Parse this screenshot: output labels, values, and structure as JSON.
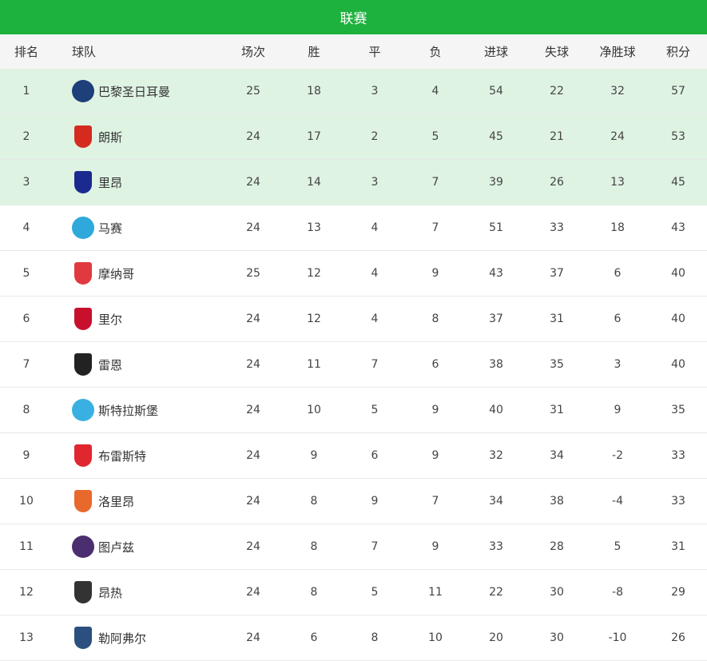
{
  "title": "联赛",
  "columns": [
    "排名",
    "球队",
    "场次",
    "胜",
    "平",
    "负",
    "进球",
    "失球",
    "净胜球",
    "积分"
  ],
  "highlight_color": "#dff3e3",
  "accent": "#1db13d",
  "rows": [
    {
      "rank": "1",
      "team": "巴黎圣日耳曼",
      "played": "25",
      "won": "18",
      "drawn": "3",
      "lost": "4",
      "gf": "54",
      "ga": "22",
      "gd": "32",
      "pts": "57",
      "logo": "psg-crest-icon",
      "logo_color": "#1d3f7a",
      "shape": "circle"
    },
    {
      "rank": "2",
      "team": "朗斯",
      "played": "24",
      "won": "17",
      "drawn": "2",
      "lost": "5",
      "gf": "45",
      "ga": "21",
      "gd": "24",
      "pts": "53",
      "logo": "lens-crest-icon",
      "logo_color": "#d52b1e",
      "shape": "shield"
    },
    {
      "rank": "3",
      "team": "里昂",
      "played": "24",
      "won": "14",
      "drawn": "3",
      "lost": "7",
      "gf": "39",
      "ga": "26",
      "gd": "13",
      "pts": "45",
      "logo": "lyon-crest-icon",
      "logo_color": "#1a2a8f",
      "shape": "shield"
    },
    {
      "rank": "4",
      "team": "马赛",
      "played": "24",
      "won": "13",
      "drawn": "4",
      "lost": "7",
      "gf": "51",
      "ga": "33",
      "gd": "18",
      "pts": "43",
      "logo": "marseille-crest-icon",
      "logo_color": "#2fa8dc",
      "shape": "circle"
    },
    {
      "rank": "5",
      "team": "摩纳哥",
      "played": "25",
      "won": "12",
      "drawn": "4",
      "lost": "9",
      "gf": "43",
      "ga": "37",
      "gd": "6",
      "pts": "40",
      "logo": "monaco-crest-icon",
      "logo_color": "#e03a3e",
      "shape": "shield"
    },
    {
      "rank": "6",
      "team": "里尔",
      "played": "24",
      "won": "12",
      "drawn": "4",
      "lost": "8",
      "gf": "37",
      "ga": "31",
      "gd": "6",
      "pts": "40",
      "logo": "lille-crest-icon",
      "logo_color": "#c8102e",
      "shape": "shield"
    },
    {
      "rank": "7",
      "team": "雷恩",
      "played": "24",
      "won": "11",
      "drawn": "7",
      "lost": "6",
      "gf": "38",
      "ga": "35",
      "gd": "3",
      "pts": "40",
      "logo": "rennes-crest-icon",
      "logo_color": "#222222",
      "shape": "shield"
    },
    {
      "rank": "8",
      "team": "斯特拉斯堡",
      "played": "24",
      "won": "10",
      "drawn": "5",
      "lost": "9",
      "gf": "40",
      "ga": "31",
      "gd": "9",
      "pts": "35",
      "logo": "strasbourg-crest-icon",
      "logo_color": "#3ab0e2",
      "shape": "circle"
    },
    {
      "rank": "9",
      "team": "布雷斯特",
      "played": "24",
      "won": "9",
      "drawn": "6",
      "lost": "9",
      "gf": "32",
      "ga": "34",
      "gd": "-2",
      "pts": "33",
      "logo": "brest-crest-icon",
      "logo_color": "#e0262f",
      "shape": "shield"
    },
    {
      "rank": "10",
      "team": "洛里昂",
      "played": "24",
      "won": "8",
      "drawn": "9",
      "lost": "7",
      "gf": "34",
      "ga": "38",
      "gd": "-4",
      "pts": "33",
      "logo": "lorient-crest-icon",
      "logo_color": "#e8692c",
      "shape": "shield"
    },
    {
      "rank": "11",
      "team": "图卢兹",
      "played": "24",
      "won": "8",
      "drawn": "7",
      "lost": "9",
      "gf": "33",
      "ga": "28",
      "gd": "5",
      "pts": "31",
      "logo": "toulouse-crest-icon",
      "logo_color": "#4b2e6f",
      "shape": "circle"
    },
    {
      "rank": "12",
      "team": "昂热",
      "played": "24",
      "won": "8",
      "drawn": "5",
      "lost": "11",
      "gf": "22",
      "ga": "30",
      "gd": "-8",
      "pts": "29",
      "logo": "angers-crest-icon",
      "logo_color": "#333333",
      "shape": "shield"
    },
    {
      "rank": "13",
      "team": "勒阿弗尔",
      "played": "24",
      "won": "6",
      "drawn": "8",
      "lost": "10",
      "gf": "20",
      "ga": "30",
      "gd": "-10",
      "pts": "26",
      "logo": "lehavre-crest-icon",
      "logo_color": "#2b4f7e",
      "shape": "shield"
    }
  ]
}
